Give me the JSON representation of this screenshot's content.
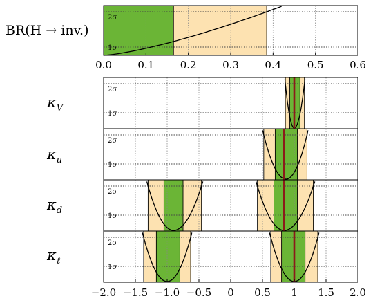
{
  "chart_data": [
    {
      "type": "area",
      "row_label": "BR(H → inv.)",
      "x": {
        "lim": [
          0.0,
          0.6
        ],
        "ticks": [
          0.0,
          0.1,
          0.2,
          0.3,
          0.4,
          0.5,
          0.6
        ],
        "tick_labels": [
          "0.0",
          "0.1",
          "0.2",
          "0.3",
          "0.4",
          "0.5",
          "0.6"
        ]
      },
      "sigma_labels": [
        "1σ",
        "2σ"
      ],
      "band_1sigma": [
        0.0,
        0.165
      ],
      "band_2sigma": [
        0.165,
        0.385
      ],
      "chi_curve": {
        "x_at_1sigma": 0.165,
        "x_at_2sigma": 0.385
      }
    },
    {
      "type": "area",
      "row_label": "κV",
      "best_fit": 1.0,
      "intervals": [
        {
          "center": 1.0,
          "band_1sigma": [
            0.93,
            1.09
          ],
          "band_2sigma": [
            0.86,
            1.16
          ]
        }
      ]
    },
    {
      "type": "area",
      "row_label": "κu",
      "best_fit": 0.84,
      "intervals": [
        {
          "center": 0.87,
          "band_1sigma": [
            0.7,
            1.05
          ],
          "band_2sigma": [
            0.52,
            1.2
          ]
        }
      ]
    },
    {
      "type": "area",
      "row_label": "κd",
      "best_fit": 0.84,
      "intervals": [
        {
          "center": -0.9,
          "band_1sigma": [
            -1.05,
            -0.75
          ],
          "band_2sigma": [
            -1.3,
            -0.46
          ]
        },
        {
          "center": 0.84,
          "band_1sigma": [
            0.68,
            1.05
          ],
          "band_2sigma": [
            0.42,
            1.3
          ]
        }
      ]
    },
    {
      "type": "area",
      "row_label": "κℓ",
      "best_fit": 1.0,
      "intervals": [
        {
          "center": -1.0,
          "band_1sigma": [
            -1.17,
            -0.8
          ],
          "band_2sigma": [
            -1.37,
            -0.63
          ]
        },
        {
          "center": 1.0,
          "band_1sigma": [
            0.8,
            1.17
          ],
          "band_2sigma": [
            0.63,
            1.37
          ]
        }
      ]
    }
  ],
  "lower_axis": {
    "lim": [
      -2.0,
      2.0
    ],
    "ticks": [
      -2.0,
      -1.5,
      -1.0,
      -0.5,
      0,
      0.5,
      1,
      1.5,
      2.0
    ],
    "tick_labels": [
      "−2.0",
      "−1.5",
      "−1.0",
      "−0.5",
      "0",
      "0.5",
      "1",
      "1.5",
      "2.0"
    ]
  },
  "colors": {
    "band_1sigma": "#6bb536",
    "band_2sigma": "#fde2b1",
    "best_fit": "#8b1a1a",
    "curve": "#000000",
    "grid": "#888888"
  }
}
